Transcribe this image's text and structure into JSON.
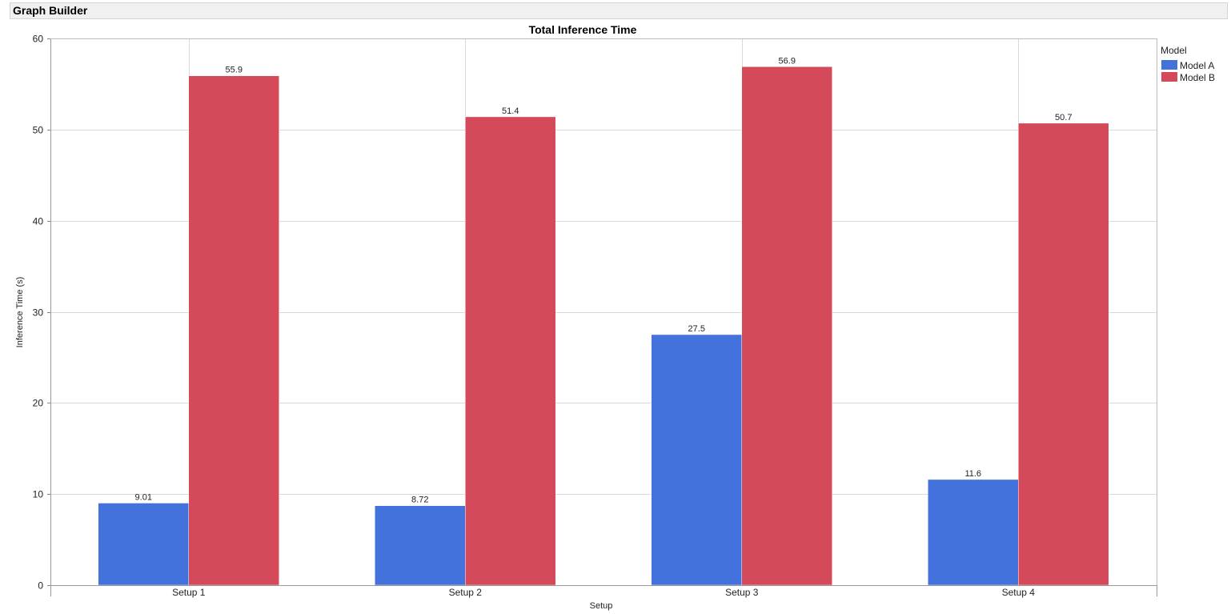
{
  "window": {
    "title": "Graph Builder"
  },
  "chart_data": {
    "type": "bar",
    "title": "Total Inference Time",
    "xlabel": "Setup",
    "ylabel": "Inference Time (s)",
    "categories": [
      "Setup 1",
      "Setup 2",
      "Setup 3",
      "Setup 4"
    ],
    "series": [
      {
        "name": "Model A",
        "color": "#4472dc",
        "values": [
          9.01,
          8.72,
          27.5,
          11.6
        ],
        "labels": [
          "9.01",
          "8.72",
          "27.5",
          "11.6"
        ]
      },
      {
        "name": "Model B",
        "color": "#d44a5a",
        "values": [
          55.9,
          51.4,
          56.9,
          50.7
        ],
        "labels": [
          "55.9",
          "51.4",
          "56.9",
          "50.7"
        ]
      }
    ],
    "ylim": [
      0,
      60
    ],
    "yticks": [
      0,
      10,
      20,
      30,
      40,
      50,
      60
    ],
    "grid": true,
    "legend": {
      "title": "Model",
      "placement": "right"
    }
  }
}
